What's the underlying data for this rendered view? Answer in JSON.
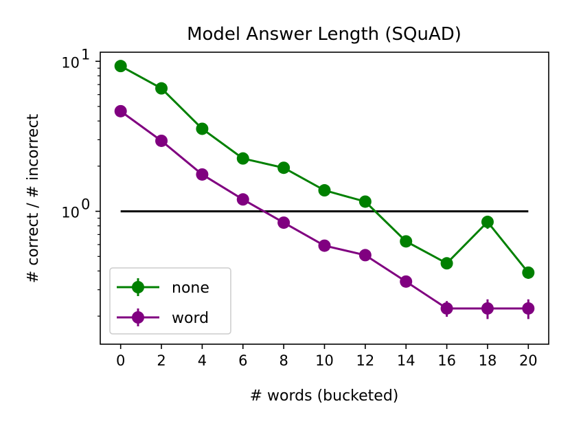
{
  "chart_data": {
    "type": "line",
    "title": "Model Answer Length (SQuAD)",
    "xlabel": "# words (bucketed)",
    "ylabel": "# correct / # incorrect",
    "x": [
      0,
      2,
      4,
      6,
      8,
      10,
      12,
      14,
      16,
      18,
      20
    ],
    "xlim": [
      -1,
      21
    ],
    "ylim": [
      0.13,
      11.5
    ],
    "y_scale": "log",
    "x_ticks": [
      "0",
      "2",
      "4",
      "6",
      "8",
      "10",
      "12",
      "14",
      "16",
      "18",
      "20"
    ],
    "y_ticks": [
      {
        "base": "10",
        "exp": "0",
        "value": 1
      },
      {
        "base": "10",
        "exp": "1",
        "value": 10
      }
    ],
    "legend_position": "lower-left",
    "reference_line": {
      "y": 1,
      "x_range": [
        0,
        20
      ],
      "color": "#000000"
    },
    "series": [
      {
        "name": "none",
        "color": "#008000",
        "values": [
          9.3,
          6.6,
          3.55,
          2.25,
          1.95,
          1.38,
          1.16,
          0.63,
          0.45,
          0.85,
          0.39
        ],
        "error": [
          0.06,
          0.06,
          0.06,
          0.06,
          0.05,
          0.05,
          0.05,
          0.05,
          0.07,
          0.1,
          0.09
        ]
      },
      {
        "name": "word",
        "color": "#800080",
        "values": [
          4.65,
          2.95,
          1.76,
          1.2,
          0.84,
          0.59,
          0.51,
          0.34,
          0.225,
          0.225,
          0.225
        ],
        "error": [
          0.06,
          0.05,
          0.04,
          0.04,
          0.04,
          0.04,
          0.04,
          0.07,
          0.12,
          0.15,
          0.15
        ]
      }
    ]
  }
}
